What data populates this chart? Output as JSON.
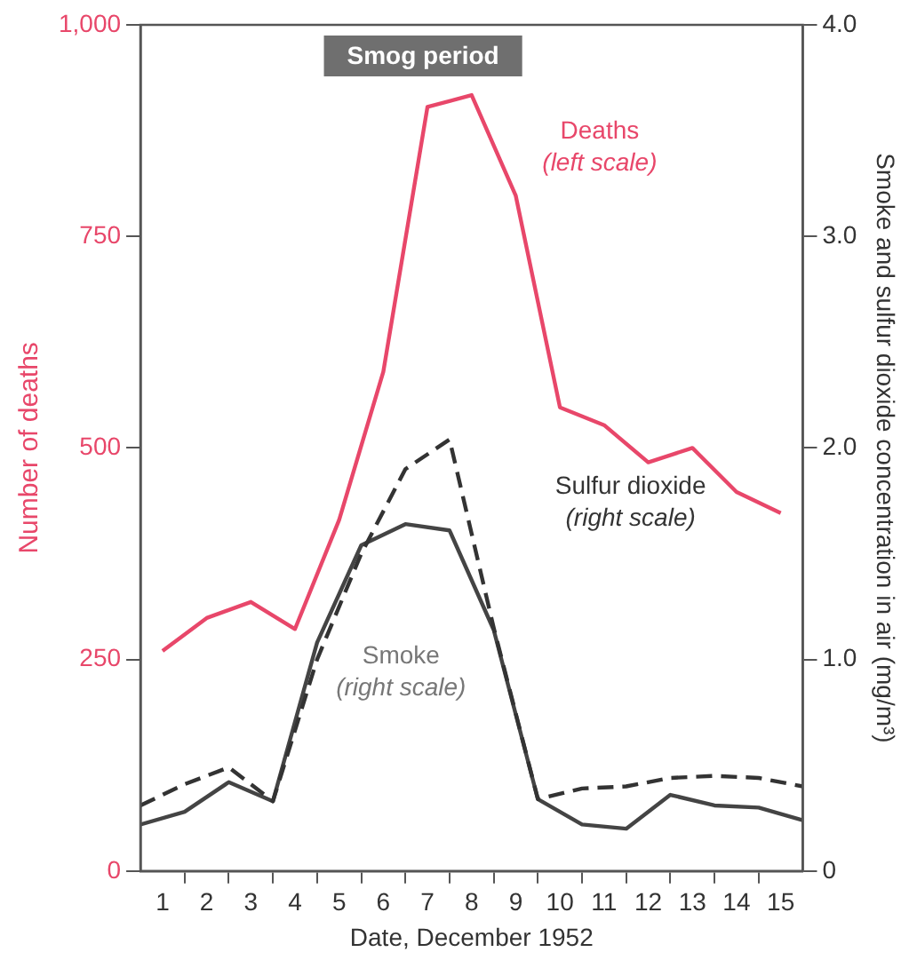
{
  "chart_data": {
    "type": "line",
    "xlabel": "Date, December 1952",
    "ylabel": "Number of deaths",
    "y2label": "Smoke and sulfur dioxide concentration in air (mg/m³)",
    "annotations": [
      "Smog period"
    ],
    "xlim": [
      0.5,
      15.5
    ],
    "xticks": [
      1,
      {
        "value": 1.5,
        "label": null
      },
      2,
      {
        "value": 2.5,
        "label": null
      },
      3,
      {
        "value": 3.5,
        "label": null
      },
      4,
      {
        "value": 4.5,
        "label": null
      },
      5,
      {
        "value": 5.5,
        "label": null
      },
      6,
      {
        "value": 6.5,
        "label": null
      },
      7,
      {
        "value": 7.5,
        "label": null
      },
      8,
      {
        "value": 8.5,
        "label": null
      },
      9,
      {
        "value": 9.5,
        "label": null
      },
      10,
      {
        "value": 10.5,
        "label": null
      },
      11,
      {
        "value": 11.5,
        "label": null
      },
      12,
      {
        "value": 12.5,
        "label": null
      },
      13,
      {
        "value": 13.5,
        "label": null
      },
      14,
      {
        "value": 14.5,
        "label": null
      },
      15
    ],
    "ylim": [
      0,
      1000
    ],
    "yticks": [
      0,
      250,
      500,
      750,
      {
        "value": 1000,
        "label": "1,000"
      }
    ],
    "y2lim": [
      0,
      4
    ],
    "y2ticks": [
      0,
      {
        "value": 1,
        "label": "1.0"
      },
      {
        "value": 2,
        "label": "2.0"
      },
      {
        "value": 3,
        "label": "3.0"
      },
      {
        "value": 4,
        "label": "4.0"
      }
    ],
    "grid": false,
    "legend": false,
    "marker": "none",
    "series": [
      {
        "name": "Deaths (left scale)",
        "color": "#e8476a",
        "line_style": "solid",
        "x": [
          1,
          2,
          3,
          4,
          5,
          6,
          7,
          8,
          9,
          10,
          11,
          12,
          13,
          14,
          15
        ],
        "values": [
          260,
          299,
          318,
          286,
          415,
          590,
          903,
          917,
          798,
          548,
          527,
          483,
          500,
          448,
          423
        ]
      },
      {
        "name": "Sulfur dioxide (right scale)",
        "color": "#333333",
        "line_style": "dashed",
        "axis": "y2",
        "x": [
          0.5,
          1.5,
          2.5,
          3.5,
          4.5,
          5.5,
          6.5,
          7.5,
          8.5,
          9.5,
          10.5,
          11.5,
          12.5,
          13.5,
          14.5,
          15.5
        ],
        "values": [
          0.31,
          0.41,
          0.49,
          0.33,
          1.0,
          1.5,
          1.9,
          2.04,
          1.15,
          0.34,
          0.39,
          0.4,
          0.44,
          0.45,
          0.44,
          0.4
        ]
      },
      {
        "name": "Smoke (right scale)",
        "color": "#444444",
        "line_style": "solid",
        "axis": "y2",
        "x": [
          0.5,
          1.5,
          2.5,
          3.5,
          4.5,
          5.5,
          6.5,
          7.5,
          8.5,
          9.5,
          10.5,
          11.5,
          12.5,
          13.5,
          14.5,
          15.5
        ],
        "values": [
          0.22,
          0.28,
          0.42,
          0.33,
          1.08,
          1.54,
          1.64,
          1.61,
          1.14,
          0.34,
          0.22,
          0.2,
          0.36,
          0.31,
          0.3,
          0.24
        ]
      }
    ]
  }
}
